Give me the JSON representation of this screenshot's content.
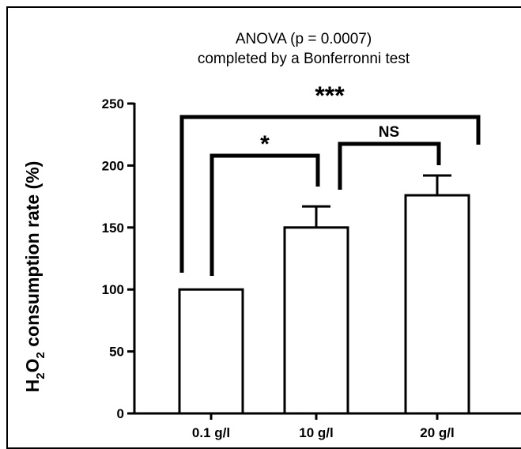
{
  "chart_data": {
    "type": "bar",
    "title": "ANOVA (p = 0.0007)",
    "subtitle": "completed by a Bonferronni test",
    "ylabel": "H2O2 consumption rate (%)",
    "ylabel_parts": {
      "main": "H",
      "sub1": "2",
      "mid": "O",
      "sub2": "2",
      "rest": " consumption rate (%)"
    },
    "categories": [
      "0.1 g/l",
      "10 g/l",
      "20 g/l"
    ],
    "values": [
      100,
      150,
      176
    ],
    "errors": [
      0,
      17,
      16
    ],
    "ylim": [
      0,
      250
    ],
    "yticks": [
      0,
      50,
      100,
      150,
      200,
      250
    ],
    "bar_color": "#ffffff",
    "edge_color": "#000000",
    "comparisons": [
      {
        "from": 0,
        "to": 2,
        "label": "***"
      },
      {
        "from": 0,
        "to": 1,
        "label": "*"
      },
      {
        "from": 1,
        "to": 2,
        "label": "NS"
      }
    ]
  }
}
